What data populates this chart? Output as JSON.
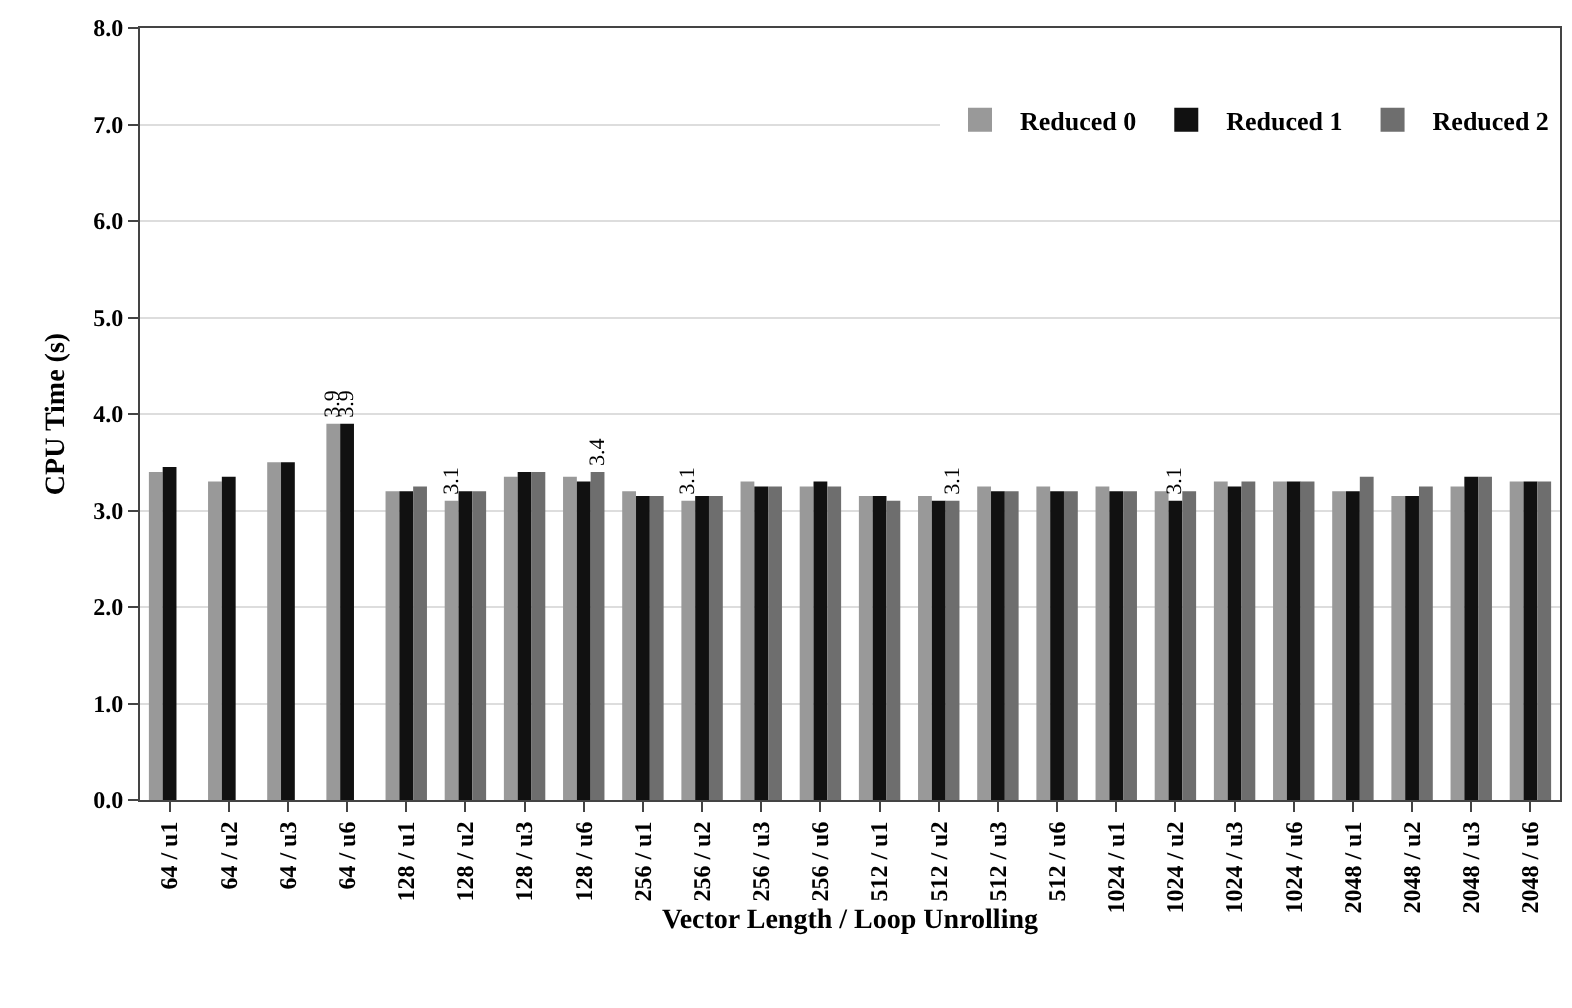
{
  "chart_data": {
    "type": "bar",
    "xlabel": "Vector Length / Loop Unrolling",
    "ylabel": "CPU Time (s)",
    "categories": [
      "64 / u1",
      "64 / u2",
      "64 / u3",
      "64 / u6",
      "128 / u1",
      "128 / u2",
      "128 / u3",
      "128 / u6",
      "256 / u1",
      "256 / u2",
      "256 / u3",
      "256 / u6",
      "512 / u1",
      "512 / u2",
      "512 / u3",
      "512 / u6",
      "1024 / u1",
      "1024 / u2",
      "1024 / u3",
      "1024 / u6",
      "2048 / u1",
      "2048 / u2",
      "2048 / u3",
      "2048 / u6"
    ],
    "series": [
      {
        "name": "Reduced 0",
        "color": "#999999",
        "values": [
          3.4,
          3.3,
          3.5,
          3.9,
          3.2,
          3.1,
          3.35,
          3.35,
          3.2,
          3.1,
          3.3,
          3.25,
          3.15,
          3.15,
          3.25,
          3.25,
          3.25,
          3.2,
          3.3,
          3.3,
          3.2,
          3.15,
          3.25,
          3.3
        ],
        "value_labels": [
          null,
          null,
          null,
          "3.9",
          null,
          "3.1",
          null,
          null,
          null,
          "3.1",
          null,
          null,
          null,
          null,
          null,
          null,
          null,
          null,
          null,
          null,
          null,
          null,
          null,
          null
        ]
      },
      {
        "name": "Reduced 1",
        "color": "#111111",
        "values": [
          3.45,
          3.35,
          3.5,
          3.9,
          3.2,
          3.2,
          3.4,
          3.3,
          3.15,
          3.15,
          3.25,
          3.3,
          3.15,
          3.1,
          3.2,
          3.2,
          3.2,
          3.1,
          3.25,
          3.3,
          3.2,
          3.15,
          3.35,
          3.3
        ],
        "value_labels": [
          null,
          null,
          null,
          "3.9",
          null,
          null,
          null,
          null,
          null,
          null,
          null,
          null,
          null,
          null,
          null,
          null,
          null,
          "3.1",
          null,
          null,
          null,
          null,
          null,
          null
        ]
      },
      {
        "name": "Reduced 2",
        "color": "#6e6e6e",
        "values": [
          null,
          null,
          null,
          null,
          3.25,
          3.2,
          3.4,
          3.4,
          3.15,
          3.15,
          3.25,
          3.25,
          3.1,
          3.1,
          3.2,
          3.2,
          3.2,
          3.2,
          3.3,
          3.3,
          3.35,
          3.25,
          3.35,
          3.3
        ],
        "value_labels": [
          null,
          null,
          null,
          null,
          null,
          null,
          null,
          "3.4",
          null,
          null,
          null,
          null,
          null,
          "3.1",
          null,
          null,
          null,
          null,
          null,
          null,
          null,
          null,
          null,
          null
        ]
      }
    ],
    "ylim": [
      0,
      8
    ],
    "yticks": [
      {
        "value": 0,
        "label": "0.0"
      },
      {
        "value": 1,
        "label": "1.0"
      },
      {
        "value": 2,
        "label": "2.0"
      },
      {
        "value": 3,
        "label": "3.0"
      },
      {
        "value": 4,
        "label": "4.0"
      },
      {
        "value": 5,
        "label": "5.0"
      },
      {
        "value": 6,
        "label": "6.0"
      },
      {
        "value": 7,
        "label": "7.0"
      },
      {
        "value": 8,
        "label": "8.0"
      }
    ],
    "grid": "y",
    "legend": "top right"
  }
}
